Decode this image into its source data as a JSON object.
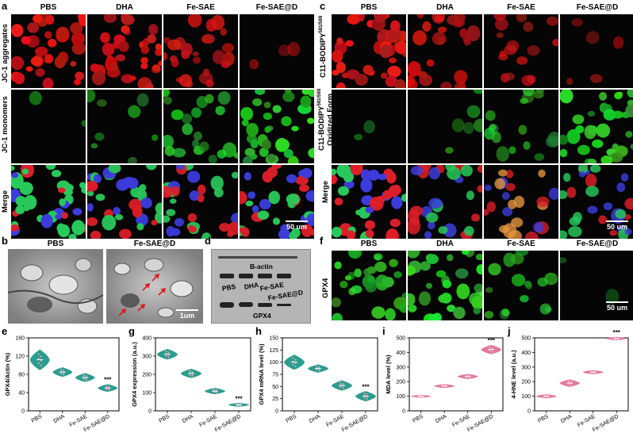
{
  "panels": {
    "a": {
      "letter": "a",
      "columns": [
        "PBS",
        "DHA",
        "Fe-SAE",
        "Fe-SAE@D"
      ],
      "rows": [
        "JC-1 aggregates",
        "JC-1 monomers",
        "Merge"
      ],
      "scale": "50 um"
    },
    "c": {
      "letter": "c",
      "columns": [
        "PBS",
        "DHA",
        "Fe-SAE",
        "Fe-SAE@D"
      ],
      "row1": "C11-BODIPY",
      "row1_sup": "581/589",
      "row2_line1": "C11-BODIPY",
      "row2_sup": "581/589",
      "row2_line2": "Oxidized Form",
      "row3": "Merge",
      "scale": "50 um"
    },
    "b": {
      "letter": "b",
      "columns": [
        "PBS",
        "Fe-SAE@D"
      ],
      "scale": "1um"
    },
    "d": {
      "letter": "d",
      "top_band": "B-actin",
      "bottom_band": "GPX4",
      "lanes": [
        "PBS",
        "DHA",
        "Fe-SAE",
        "Fe-SAE@D"
      ]
    },
    "f": {
      "letter": "f",
      "columns": [
        "PBS",
        "DHA",
        "Fe-SAE",
        "Fe-SAE@D"
      ],
      "row": "GPX4",
      "scale": "50 um"
    }
  },
  "chart_data": [
    {
      "letter": "e",
      "type": "violin",
      "categories": [
        "PBS",
        "DHA",
        "Fe-SAE",
        "Fe-SAE@D"
      ],
      "values": [
        112,
        85,
        73,
        50
      ],
      "spread": [
        22,
        10,
        9,
        8
      ],
      "ylabel": "GPX4/Actin  (%)",
      "ylim": [
        0,
        160
      ],
      "yticks": [
        0,
        40,
        80,
        120,
        160
      ],
      "significance": "***",
      "sig_index": 3,
      "color": "#2a9d8f"
    },
    {
      "letter": "g",
      "type": "violin",
      "categories": [
        "PBS",
        "DHA",
        "Fe-SAE",
        "Fe-SAE@D"
      ],
      "values": [
        310,
        205,
        108,
        33
      ],
      "spread": [
        28,
        24,
        16,
        9
      ],
      "ylabel": "GPX4 expression  (a.u.)",
      "ylim": [
        0,
        400
      ],
      "yticks": [
        0,
        100,
        200,
        300,
        400
      ],
      "significance": "***",
      "sig_index": 3,
      "color": "#2a9d8f"
    },
    {
      "letter": "h",
      "type": "violin",
      "categories": [
        "PBS",
        "DHA",
        "Fe-SAE",
        "Fe-SAE@D"
      ],
      "values": [
        100,
        87,
        52,
        30
      ],
      "spread": [
        15,
        8,
        10,
        10
      ],
      "ylabel": "GPX4 mRNA level  (%)",
      "ylim": [
        0,
        150
      ],
      "yticks": [
        0,
        25,
        50,
        75,
        100,
        125,
        150
      ],
      "significance": "***",
      "sig_index": 3,
      "color": "#2a9d8f"
    },
    {
      "letter": "i",
      "type": "violin",
      "categories": [
        "PBS",
        "DHA",
        "Fe-SAE",
        "Fe-SAE@D"
      ],
      "values": [
        100,
        170,
        235,
        420
      ],
      "spread": [
        8,
        12,
        16,
        30
      ],
      "ylabel": "MDA level  (%)",
      "ylim": [
        0,
        500
      ],
      "yticks": [
        0,
        100,
        200,
        300,
        400,
        500
      ],
      "significance": "***",
      "sig_index": 3,
      "color": "#e07a9b"
    },
    {
      "letter": "j",
      "type": "violin",
      "categories": [
        "PBS",
        "DHA",
        "Fe-SAE",
        "Fe-SAE@D"
      ],
      "values": [
        100,
        190,
        265,
        495
      ],
      "spread": [
        12,
        24,
        12,
        10
      ],
      "ylabel": "4-HNE level  (a.u.)",
      "ylim": [
        0,
        500
      ],
      "yticks": [
        0,
        100,
        200,
        300,
        400,
        500
      ],
      "significance": "***",
      "sig_index": 3,
      "color": "#e07a9b"
    }
  ]
}
